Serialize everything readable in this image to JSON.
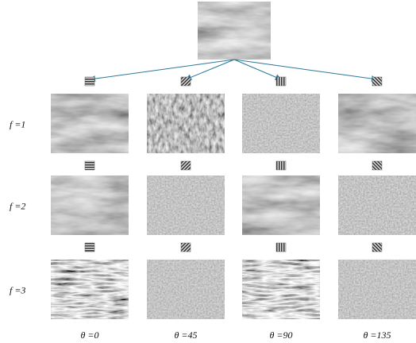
{
  "row_labels": [
    "f =1",
    "f =2",
    "f =3"
  ],
  "column_labels": [
    "θ =0",
    "θ =45",
    "θ =90",
    "θ =135"
  ]
}
